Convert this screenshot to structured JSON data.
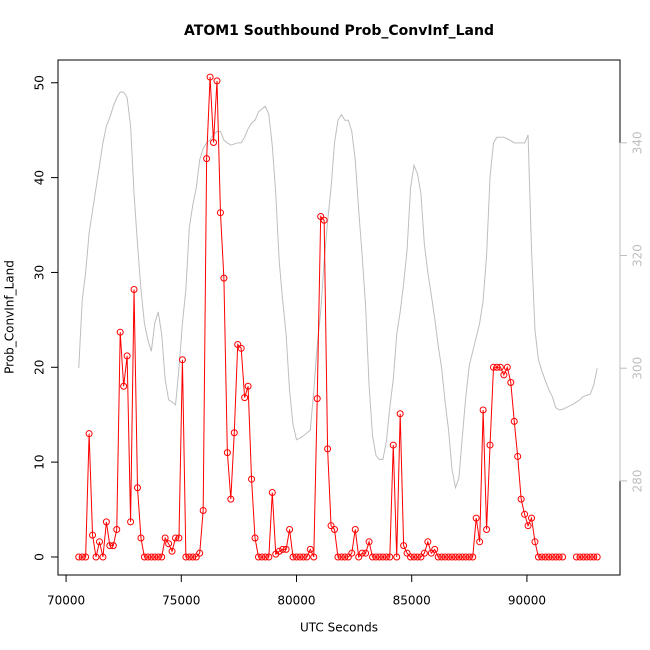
{
  "chart_data": {
    "type": "line",
    "title": "ATOM1 Southbound Prob_ConvInf_Land",
    "x_label": "UTC Seconds",
    "y_label": "Prob_ConvInf_Land",
    "xlim": [
      69650,
      94040
    ],
    "xticks": [
      70000,
      75000,
      80000,
      85000,
      90000
    ],
    "ylim": [
      -1.9,
      52.4
    ],
    "yticks": [
      0,
      10,
      20,
      30,
      40,
      50
    ],
    "y2lim": [
      263.3,
      354.7
    ],
    "y2ticks": [
      280,
      300,
      320,
      340
    ],
    "y2_color": "#bebebe",
    "x": [
      70550,
      70700,
      70850,
      71000,
      71150,
      71300,
      71450,
      71600,
      71750,
      71900,
      72050,
      72200,
      72350,
      72500,
      72650,
      72800,
      72950,
      73100,
      73250,
      73400,
      73550,
      73700,
      73850,
      74000,
      74150,
      74300,
      74450,
      74600,
      74750,
      74900,
      75050,
      75200,
      75350,
      75500,
      75650,
      75800,
      75950,
      76100,
      76250,
      76400,
      76550,
      76700,
      76850,
      77000,
      77150,
      77300,
      77450,
      77600,
      77750,
      77900,
      78050,
      78200,
      78350,
      78500,
      78650,
      78800,
      78950,
      79100,
      79250,
      79400,
      79550,
      79700,
      79850,
      80000,
      80150,
      80300,
      80450,
      80600,
      80750,
      80900,
      81050,
      81200,
      81350,
      81500,
      81650,
      81800,
      81950,
      82100,
      82250,
      82400,
      82550,
      82700,
      82850,
      83000,
      83150,
      83300,
      83450,
      83600,
      83750,
      83900,
      84050,
      84200,
      84350,
      84500,
      84650,
      84800,
      84950,
      85100,
      85250,
      85400,
      85550,
      85700,
      85850,
      86000,
      86150,
      86300,
      86450,
      86600,
      86750,
      86900,
      87050,
      87200,
      87350,
      87500,
      87650,
      87800,
      87950,
      88100,
      88250,
      88400,
      88550,
      88700,
      88850,
      89000,
      89150,
      89300,
      89450,
      89600,
      89750,
      89900,
      90050,
      90200,
      90350,
      90500,
      90650,
      90800,
      90950,
      91100,
      91250,
      91400,
      91550,
      91700,
      91850,
      92000,
      92150,
      92300,
      92450,
      92600,
      92750,
      92900,
      93050
    ],
    "series": [
      {
        "color": "#bebebe",
        "axis": "y2",
        "values": [
          300,
          312,
          317,
          324,
          328,
          332,
          336,
          340,
          343,
          344.5,
          346.5,
          348,
          349,
          349,
          348,
          343,
          331,
          322,
          314,
          308,
          305,
          303,
          308,
          310,
          306,
          298,
          294.4,
          294,
          293.5,
          300,
          308,
          314,
          325,
          329,
          332,
          337,
          339,
          340,
          340.5,
          341.5,
          342,
          342,
          340.5,
          340,
          339.6,
          339.8,
          340,
          340,
          341,
          342.5,
          343.5,
          344,
          345.5,
          346,
          346.5,
          345,
          339.5,
          331,
          319,
          312,
          306,
          296,
          290,
          287.3,
          287.6,
          288,
          288.5,
          289,
          296,
          304,
          310,
          319,
          326,
          332,
          340,
          344,
          345,
          344,
          344,
          342,
          337,
          328,
          320,
          311,
          297,
          288,
          284.5,
          283.8,
          283.8,
          287,
          293,
          298,
          306,
          310,
          315,
          321,
          332,
          336,
          334.5,
          331,
          322,
          317,
          313,
          308.8,
          304,
          300,
          294,
          289,
          282,
          278.8,
          280.5,
          288,
          295,
          300.5,
          303,
          305.5,
          308,
          312,
          320,
          334,
          340,
          341,
          341,
          341,
          340.7,
          340.4,
          340,
          340,
          340,
          340,
          341.4,
          321,
          306.8,
          301.5,
          299.5,
          297.8,
          296.2,
          295,
          293,
          292.6,
          292.7,
          293,
          293.3,
          293.6,
          294,
          294.4,
          295,
          295.2,
          295.4,
          297,
          300
        ]
      },
      {
        "color": "#ff0000",
        "marker": "circle",
        "values": [
          0,
          0,
          0,
          13,
          2.3,
          0,
          1.6,
          0,
          3.7,
          1.2,
          1.2,
          2.9,
          23.7,
          18,
          21.2,
          3.7,
          28.2,
          7.3,
          2,
          0,
          0,
          0,
          0,
          0,
          0,
          2,
          1.4,
          0.6,
          2,
          2,
          20.8,
          0,
          0,
          0,
          0,
          0.4,
          4.9,
          42,
          50.6,
          43.7,
          50.2,
          36.3,
          29.4,
          11,
          6.1,
          13.1,
          22.4,
          22,
          16.8,
          18,
          8.2,
          2,
          0,
          0,
          0,
          0,
          6.8,
          0.3,
          0.6,
          0.8,
          0.8,
          2.9,
          0,
          0,
          0,
          0,
          0,
          0.8,
          0,
          16.7,
          35.9,
          35.5,
          11.4,
          3.3,
          2.9,
          0,
          0,
          0,
          0,
          0.4,
          2.9,
          0,
          0.4,
          0.4,
          1.6,
          0,
          0,
          0,
          0,
          0,
          0,
          11.8,
          0,
          15.1,
          1.2,
          0.4,
          0,
          0,
          0,
          0,
          0.4,
          1.6,
          0.4,
          0.8,
          0,
          0,
          0,
          0,
          0,
          0,
          0,
          0,
          0,
          0,
          0,
          4.1,
          1.6,
          15.5,
          2.9,
          11.8,
          20,
          20,
          20,
          19.2,
          20,
          18.4,
          14.3,
          10.6,
          6.1,
          4.5,
          3.3,
          4.1,
          1.6,
          0,
          0,
          0,
          0,
          0,
          0,
          0,
          0,
          null,
          null,
          null,
          0,
          0,
          0,
          0,
          0,
          0,
          0
        ]
      }
    ]
  }
}
